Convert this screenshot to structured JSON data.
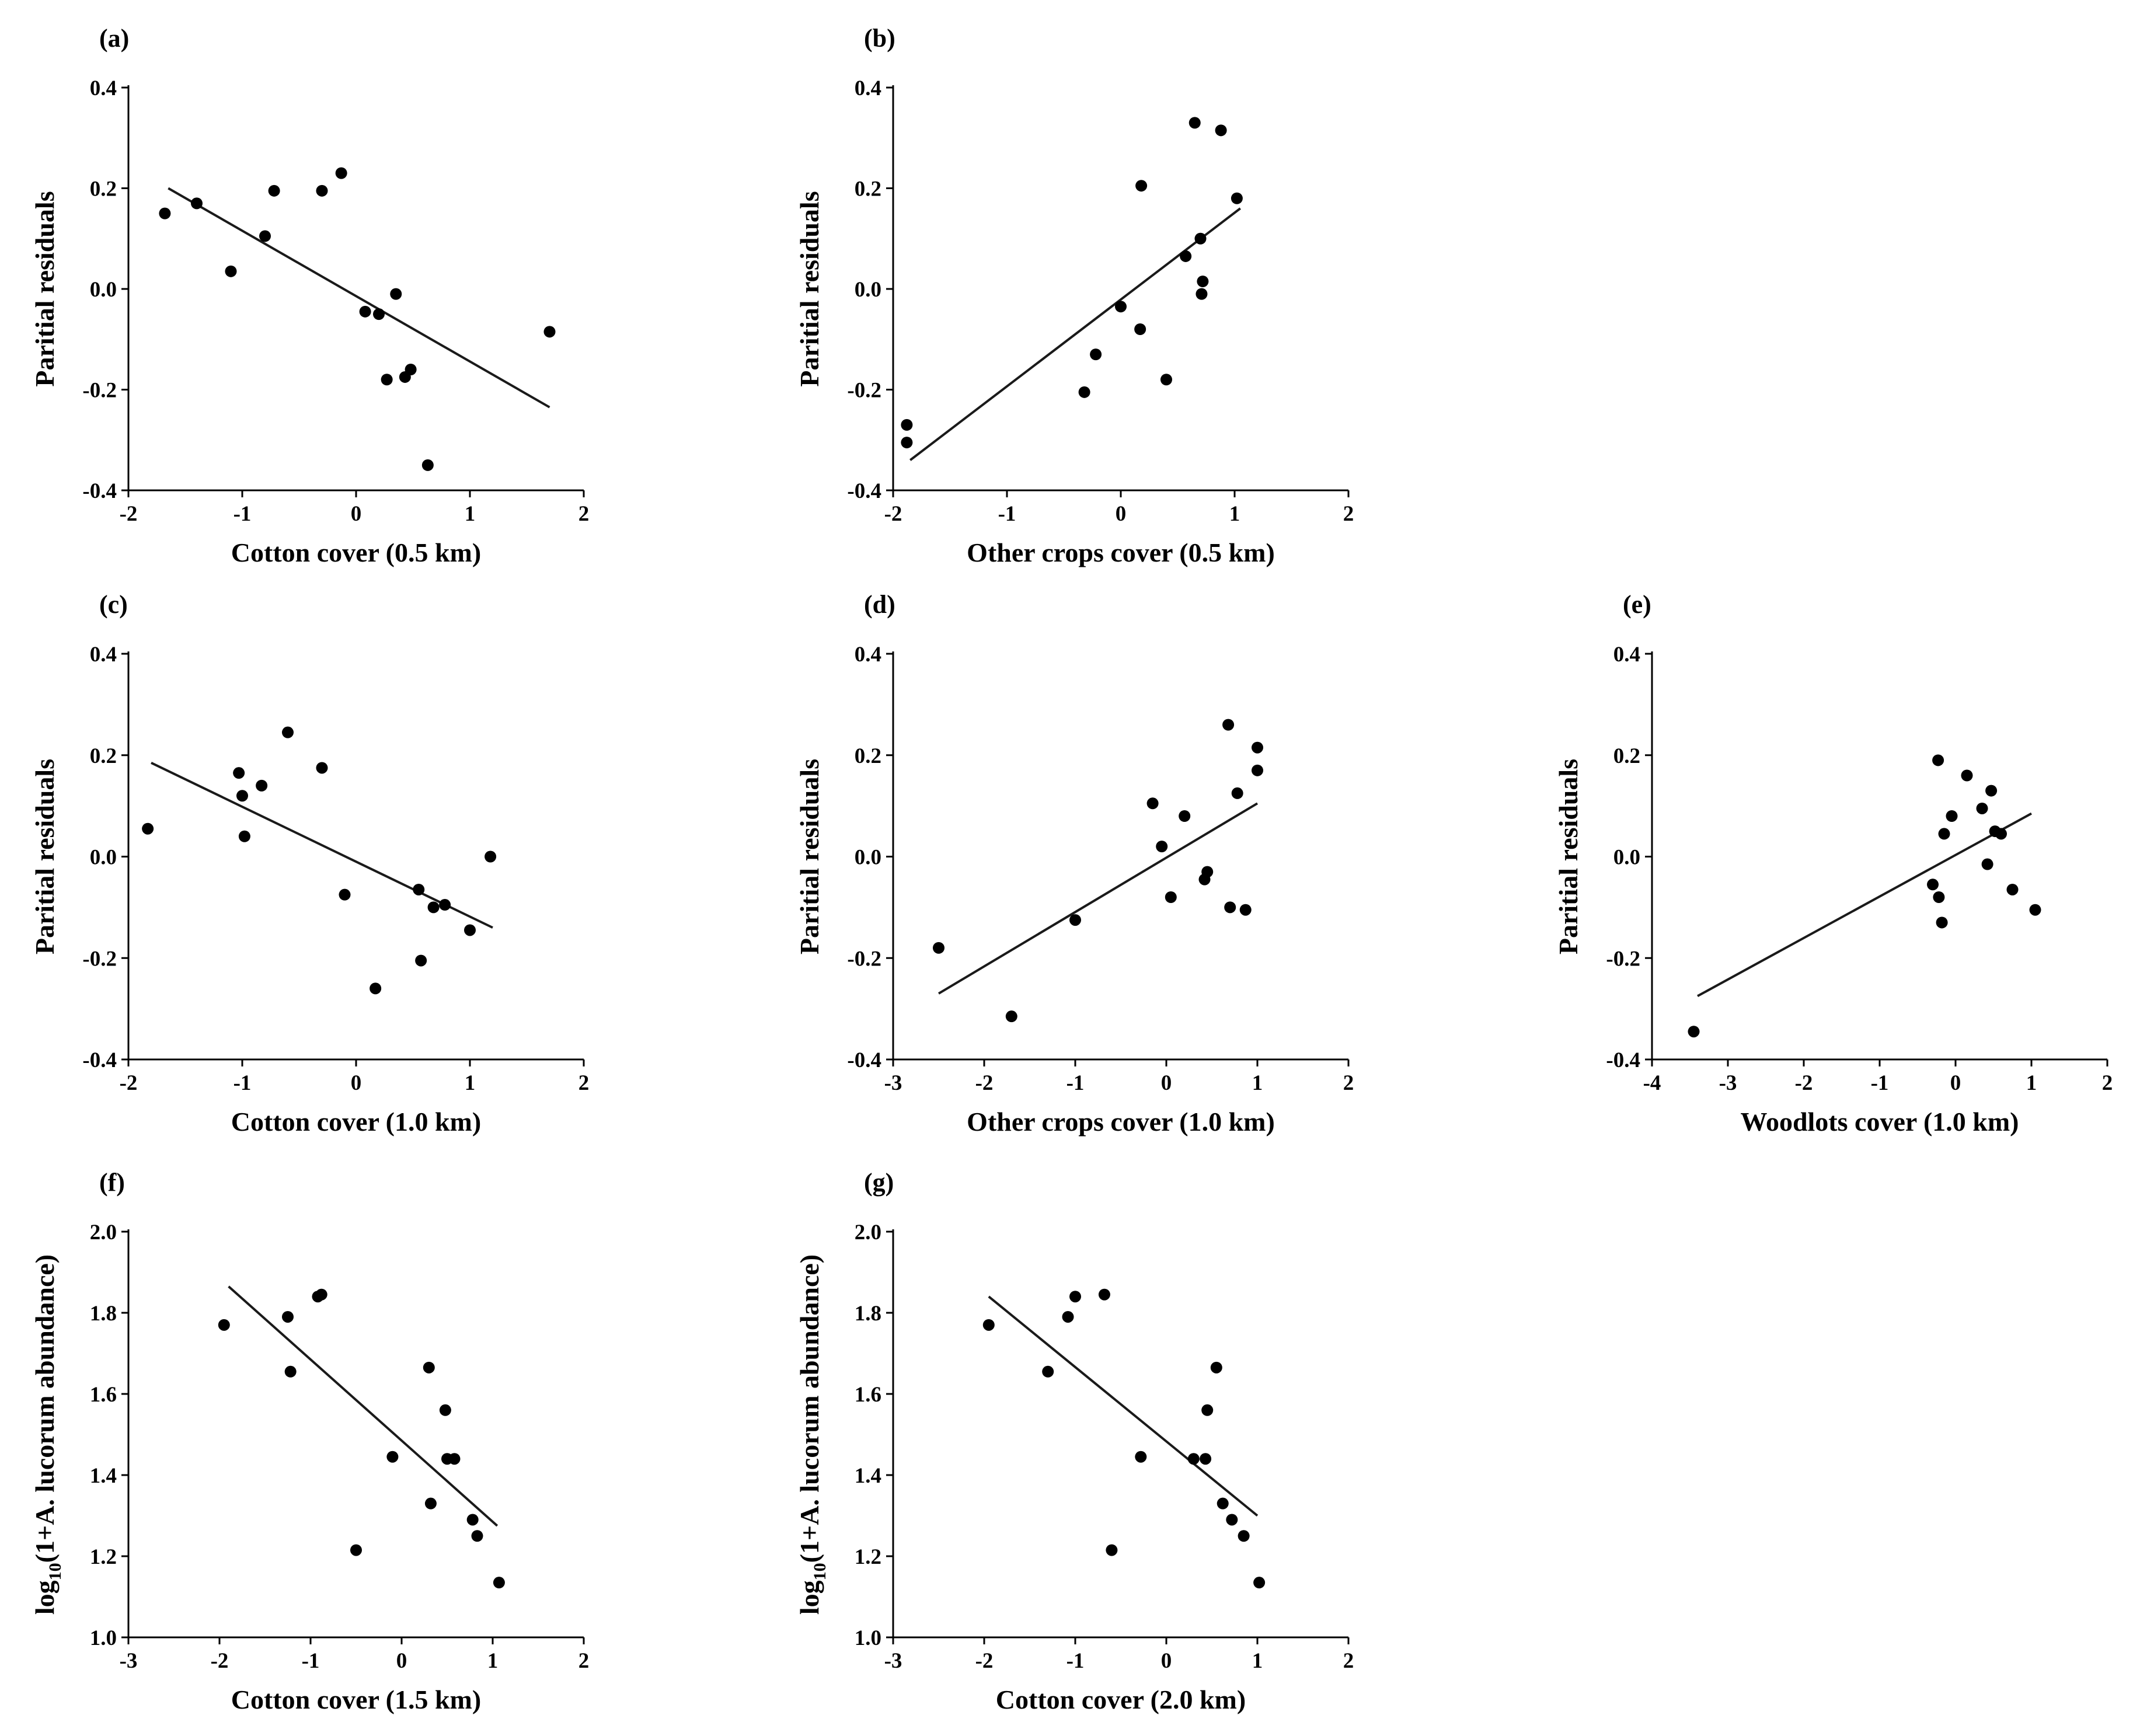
{
  "chart_data": [
    {
      "panel": "(a)",
      "type": "scatter",
      "xlabel": "Cotton cover (0.5 km)",
      "ylabel": "Paritial residuals",
      "xlim": [
        -2,
        2
      ],
      "ylim": [
        -0.4,
        0.4
      ],
      "xticks": [
        "-2",
        "-1",
        "0",
        "1",
        "2"
      ],
      "yticks": [
        "-0.4",
        "-0.2",
        "0.0",
        "0.2",
        "0.4"
      ],
      "x": [
        -1.68,
        -1.4,
        -1.1,
        -0.8,
        -0.72,
        -0.3,
        -0.13,
        0.08,
        0.2,
        0.27,
        0.35,
        0.43,
        0.48,
        0.63,
        1.7
      ],
      "y": [
        0.15,
        0.17,
        0.035,
        0.105,
        0.195,
        0.195,
        0.23,
        -0.045,
        -0.05,
        -0.18,
        -0.01,
        -0.175,
        -0.16,
        -0.35,
        -0.085
      ],
      "fit": {
        "x": [
          -1.65,
          1.7
        ],
        "y": [
          0.2,
          -0.235
        ]
      }
    },
    {
      "panel": "(b)",
      "type": "scatter",
      "xlabel": "Other crops cover (0.5 km)",
      "ylabel": "Paritial residuals",
      "xlim": [
        -2,
        2
      ],
      "ylim": [
        -0.4,
        0.4
      ],
      "xticks": [
        "-2",
        "-1",
        "0",
        "1",
        "2"
      ],
      "yticks": [
        "-0.4",
        "-0.2",
        "0.0",
        "0.2",
        "0.4"
      ],
      "x": [
        -1.88,
        -1.88,
        -0.32,
        -0.22,
        0.0,
        0.17,
        0.18,
        0.4,
        0.57,
        0.65,
        0.7,
        0.71,
        0.72,
        0.88,
        1.02
      ],
      "y": [
        -0.27,
        -0.305,
        -0.205,
        -0.13,
        -0.035,
        -0.08,
        0.205,
        -0.18,
        0.065,
        0.33,
        0.1,
        -0.01,
        0.015,
        0.315,
        0.18
      ],
      "fit": {
        "x": [
          -1.85,
          1.05
        ],
        "y": [
          -0.34,
          0.16
        ]
      }
    },
    {
      "panel": "(c)",
      "type": "scatter",
      "xlabel": "Cotton cover (1.0 km)",
      "ylabel": "Paritial residuals",
      "xlim": [
        -2,
        2
      ],
      "ylim": [
        -0.4,
        0.4
      ],
      "xticks": [
        "-2",
        "-1",
        "0",
        "1",
        "2"
      ],
      "yticks": [
        "-0.4",
        "-0.2",
        "0.0",
        "0.2",
        "0.4"
      ],
      "x": [
        -1.83,
        -1.03,
        -1.0,
        -0.98,
        -0.83,
        -0.6,
        -0.3,
        -0.1,
        0.17,
        0.55,
        0.57,
        0.68,
        0.78,
        1.0,
        1.18
      ],
      "y": [
        0.055,
        0.165,
        0.12,
        0.04,
        0.14,
        0.245,
        0.175,
        -0.075,
        -0.26,
        -0.065,
        -0.205,
        -0.1,
        -0.095,
        -0.145,
        0.0
      ],
      "fit": {
        "x": [
          -1.8,
          1.2
        ],
        "y": [
          0.185,
          -0.14
        ]
      }
    },
    {
      "panel": "(d)",
      "type": "scatter",
      "xlabel": "Other crops cover (1.0 km)",
      "ylabel": "Paritial residuals",
      "xlim": [
        -3,
        2
      ],
      "ylim": [
        -0.4,
        0.4
      ],
      "xticks": [
        "-3",
        "-2",
        "-1",
        "0",
        "1",
        "2"
      ],
      "yticks": [
        "-0.4",
        "-0.2",
        "0.0",
        "0.2",
        "0.4"
      ],
      "x": [
        -2.5,
        -1.7,
        -1.0,
        -0.15,
        -0.05,
        0.05,
        0.2,
        0.42,
        0.45,
        0.68,
        0.7,
        0.78,
        0.87,
        1.0,
        1.0
      ],
      "y": [
        -0.18,
        -0.315,
        -0.125,
        0.105,
        0.02,
        -0.08,
        0.08,
        -0.045,
        -0.03,
        0.26,
        -0.1,
        0.125,
        -0.105,
        0.215,
        0.17
      ],
      "fit": {
        "x": [
          -2.5,
          1.0
        ],
        "y": [
          -0.27,
          0.105
        ]
      }
    },
    {
      "panel": "(e)",
      "type": "scatter",
      "xlabel": "Woodlots cover (1.0 km)",
      "ylabel": "Paritial residuals",
      "xlim": [
        -4,
        2
      ],
      "ylim": [
        -0.4,
        0.4
      ],
      "xticks": [
        "-4",
        "-3",
        "-2",
        "-1",
        "0",
        "1",
        "2"
      ],
      "yticks": [
        "-0.4",
        "-0.2",
        "0.0",
        "0.2",
        "0.4"
      ],
      "x": [
        -3.45,
        -0.3,
        -0.23,
        -0.22,
        -0.18,
        -0.15,
        -0.05,
        0.15,
        0.35,
        0.42,
        0.47,
        0.52,
        0.6,
        0.75,
        1.05
      ],
      "y": [
        -0.345,
        -0.055,
        0.19,
        -0.08,
        -0.13,
        0.045,
        0.08,
        0.16,
        0.095,
        -0.015,
        0.13,
        0.05,
        0.045,
        -0.065,
        -0.105
      ],
      "fit": {
        "x": [
          -3.4,
          1.0
        ],
        "y": [
          -0.275,
          0.085
        ]
      }
    },
    {
      "panel": "(f)",
      "type": "scatter",
      "xlabel": "Cotton cover (1.5 km)",
      "ylabel": "log10(1+A. lucorum abundance)",
      "ylabel_parts": {
        "prefix": "log",
        "subscript": "10",
        "rest": "(1+A. lucorum  abundance)"
      },
      "xlim": [
        -3,
        2
      ],
      "ylim": [
        1.0,
        2.0
      ],
      "xticks": [
        "-3",
        "-2",
        "-1",
        "0",
        "1",
        "2"
      ],
      "yticks": [
        "1.0",
        "1.2",
        "1.4",
        "1.6",
        "1.8",
        "2.0"
      ],
      "x": [
        -1.95,
        -1.25,
        -1.22,
        -0.92,
        -0.88,
        -0.5,
        -0.1,
        0.3,
        0.32,
        0.48,
        0.5,
        0.58,
        0.78,
        0.83,
        1.07
      ],
      "y": [
        1.77,
        1.79,
        1.655,
        1.84,
        1.845,
        1.215,
        1.445,
        1.665,
        1.33,
        1.56,
        1.44,
        1.44,
        1.29,
        1.25,
        1.135
      ],
      "fit": {
        "x": [
          -1.9,
          1.05
        ],
        "y": [
          1.865,
          1.275
        ]
      }
    },
    {
      "panel": "(g)",
      "type": "scatter",
      "xlabel": "Cotton cover (2.0 km)",
      "ylabel": "log10(1+A. lucorum abundance)",
      "ylabel_parts": {
        "prefix": "log",
        "subscript": "10",
        "rest": "(1+A. lucorum  abundance)"
      },
      "xlim": [
        -3,
        2
      ],
      "ylim": [
        1.0,
        2.0
      ],
      "xticks": [
        "-3",
        "-2",
        "-1",
        "0",
        "1",
        "2"
      ],
      "yticks": [
        "1.0",
        "1.2",
        "1.4",
        "1.6",
        "1.8",
        "2.0"
      ],
      "x": [
        -1.95,
        -1.3,
        -1.08,
        -1.0,
        -0.68,
        -0.6,
        -0.28,
        0.3,
        0.43,
        0.45,
        0.55,
        0.62,
        0.72,
        0.85,
        1.02
      ],
      "y": [
        1.77,
        1.655,
        1.79,
        1.84,
        1.845,
        1.215,
        1.445,
        1.44,
        1.44,
        1.56,
        1.665,
        1.33,
        1.29,
        1.25,
        1.135
      ],
      "fit": {
        "x": [
          -1.95,
          1.0
        ],
        "y": [
          1.84,
          1.3
        ]
      }
    }
  ]
}
